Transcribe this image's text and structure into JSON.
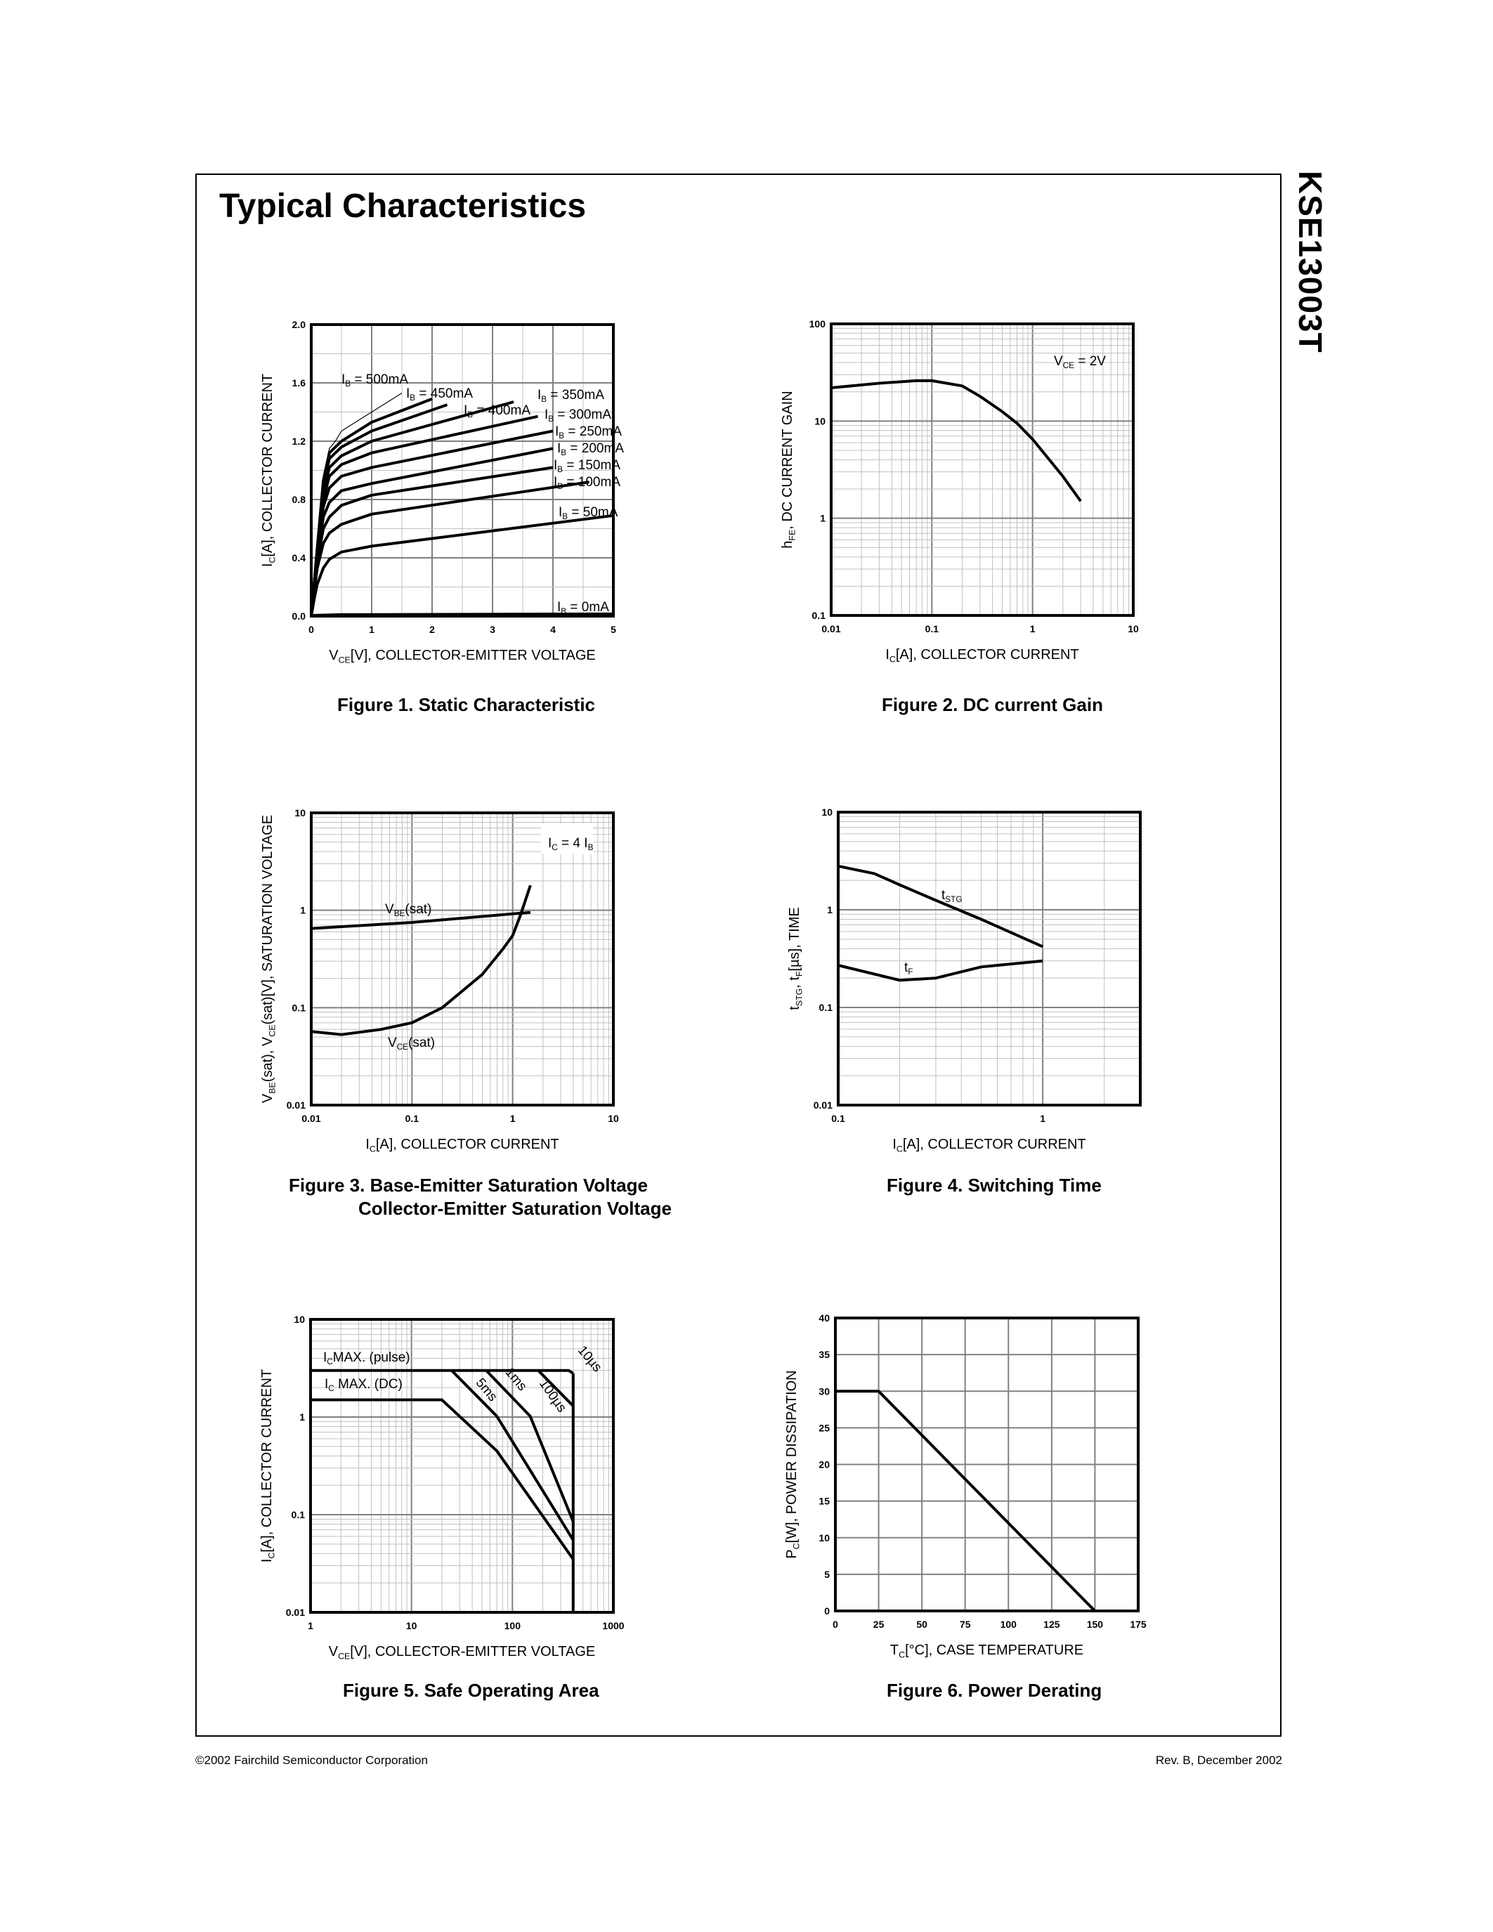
{
  "page": {
    "title": "Typical Characteristics",
    "part_number": "KSE13003T",
    "footer_left": "©2002 Fairchild Semiconductor Corporation",
    "footer_right": "Rev. B, December 2002"
  },
  "captions": {
    "fig1": "Figure 1. Static Characteristic",
    "fig2": "Figure 2. DC current Gain",
    "fig3_line1": "Figure 3. Base-Emitter Saturation Voltage",
    "fig3_line2": "Collector-Emitter Saturation Voltage",
    "fig4": "Figure 4. Switching Time",
    "fig5": "Figure 5. Safe Operating Area",
    "fig6": "Figure 6. Power Derating"
  },
  "chart_data": [
    {
      "type": "line",
      "xscale": "linear",
      "yscale": "linear",
      "xlim": [
        0,
        5
      ],
      "ylim": [
        0,
        2.0
      ],
      "grid": true,
      "xticks": [
        "0",
        "1",
        "2",
        "3",
        "4",
        "5"
      ],
      "yticks": [
        "0.0",
        "0.4",
        "0.8",
        "1.2",
        "1.6",
        "2.0"
      ],
      "xlabel": [
        "V",
        "CE",
        "[V], COLLECTOR-EMITTER VOLTAGE"
      ],
      "ylabel": [
        "I",
        "C",
        "[A], COLLECTOR CURRENT"
      ],
      "annotations": [],
      "series": [
        {
          "name": [
            "I",
            "B",
            " = 500mA"
          ],
          "points": [
            [
              0,
              0
            ],
            [
              0.1,
              0.48
            ],
            [
              0.2,
              0.96
            ],
            [
              0.3,
              1.15
            ],
            [
              0.4,
              1.2
            ],
            [
              0.5,
              1.27
            ],
            [
              1,
              1.4
            ],
            [
              1.5,
              1.53
            ]
          ]
        },
        {
          "name": [
            "I",
            "B",
            " = 450mA"
          ],
          "points": [
            [
              0,
              0
            ],
            [
              0.1,
              0.47
            ],
            [
              0.2,
              0.93
            ],
            [
              0.3,
              1.12
            ],
            [
              0.5,
              1.2
            ],
            [
              1,
              1.33
            ],
            [
              2,
              1.49
            ]
          ]
        },
        {
          "name": [
            "I",
            "B",
            " = 400mA"
          ],
          "points": [
            [
              0,
              0
            ],
            [
              0.1,
              0.46
            ],
            [
              0.2,
              0.9
            ],
            [
              0.3,
              1.08
            ],
            [
              0.5,
              1.16
            ],
            [
              1,
              1.27
            ],
            [
              2.25,
              1.45
            ]
          ]
        },
        {
          "name": [
            "I",
            "B",
            " = 350mA"
          ],
          "points": [
            [
              0,
              0
            ],
            [
              0.1,
              0.45
            ],
            [
              0.2,
              0.85
            ],
            [
              0.3,
              1.02
            ],
            [
              0.5,
              1.1
            ],
            [
              1,
              1.2
            ],
            [
              3.35,
              1.47
            ]
          ]
        },
        {
          "name": [
            "I",
            "B",
            " = 300mA"
          ],
          "points": [
            [
              0,
              0
            ],
            [
              0.1,
              0.44
            ],
            [
              0.2,
              0.8
            ],
            [
              0.3,
              0.96
            ],
            [
              0.5,
              1.04
            ],
            [
              1,
              1.12
            ],
            [
              3.75,
              1.37
            ]
          ]
        },
        {
          "name": [
            "I",
            "B",
            " = 250mA"
          ],
          "points": [
            [
              0,
              0
            ],
            [
              0.1,
              0.42
            ],
            [
              0.2,
              0.75
            ],
            [
              0.3,
              0.88
            ],
            [
              0.5,
              0.96
            ],
            [
              1,
              1.02
            ],
            [
              4,
              1.27
            ]
          ]
        },
        {
          "name": [
            "I",
            "B",
            " = 200mA"
          ],
          "points": [
            [
              0,
              0
            ],
            [
              0.1,
              0.4
            ],
            [
              0.2,
              0.68
            ],
            [
              0.3,
              0.78
            ],
            [
              0.5,
              0.86
            ],
            [
              1,
              0.91
            ],
            [
              4,
              1.15
            ]
          ]
        },
        {
          "name": [
            "I",
            "B",
            " = 150mA"
          ],
          "points": [
            [
              0,
              0
            ],
            [
              0.1,
              0.38
            ],
            [
              0.2,
              0.6
            ],
            [
              0.3,
              0.68
            ],
            [
              0.5,
              0.76
            ],
            [
              1,
              0.83
            ],
            [
              4,
              1.02
            ]
          ]
        },
        {
          "name": [
            "I",
            "B",
            " = 100mA"
          ],
          "points": [
            [
              0,
              0
            ],
            [
              0.05,
              0.18
            ],
            [
              0.1,
              0.33
            ],
            [
              0.2,
              0.5
            ],
            [
              0.3,
              0.57
            ],
            [
              0.5,
              0.63
            ],
            [
              1,
              0.7
            ],
            [
              4.6,
              0.92
            ]
          ]
        },
        {
          "name": [
            "I",
            "B",
            " = 50mA"
          ],
          "points": [
            [
              0,
              0
            ],
            [
              0.05,
              0.12
            ],
            [
              0.1,
              0.22
            ],
            [
              0.2,
              0.33
            ],
            [
              0.3,
              0.39
            ],
            [
              0.5,
              0.44
            ],
            [
              1,
              0.48
            ],
            [
              5,
              0.69
            ]
          ]
        },
        {
          "name": [
            "I",
            "B",
            " = 0mA"
          ],
          "points": [
            [
              0,
              0.005
            ],
            [
              0.5,
              0.01
            ],
            [
              5,
              0.015
            ]
          ]
        }
      ]
    },
    {
      "type": "line",
      "xscale": "log",
      "yscale": "log",
      "xlim": [
        0.01,
        10
      ],
      "ylim": [
        0.1,
        100
      ],
      "grid": true,
      "xticks": [
        "0.01",
        "0.1",
        "1",
        "10"
      ],
      "yticks": [
        "0.1",
        "1",
        "10",
        "100"
      ],
      "xlabel": [
        "I",
        "C",
        "[A], COLLECTOR CURRENT"
      ],
      "ylabel": [
        "h",
        "FE",
        ", DC CURRENT GAIN"
      ],
      "annotations": [
        [
          "V",
          "CE",
          " = 2V"
        ]
      ],
      "series": [
        {
          "points": [
            [
              0.01,
              22
            ],
            [
              0.03,
              24.5
            ],
            [
              0.07,
              26
            ],
            [
              0.1,
              26
            ],
            [
              0.2,
              23
            ],
            [
              0.3,
              18
            ],
            [
              0.5,
              12.5
            ],
            [
              0.7,
              9.5
            ],
            [
              1,
              6.5
            ],
            [
              2,
              2.7
            ],
            [
              3,
              1.5
            ]
          ]
        }
      ]
    },
    {
      "type": "line",
      "xscale": "log",
      "yscale": "log",
      "xlim": [
        0.01,
        10
      ],
      "ylim": [
        0.01,
        10
      ],
      "grid": true,
      "xticks": [
        "0.01",
        "0.1",
        "1",
        "10"
      ],
      "yticks": [
        "0.01",
        "0.1",
        "1",
        "10"
      ],
      "xlabel": [
        "I",
        "C",
        "[A], COLLECTOR CURRENT"
      ],
      "ylabel": [
        "V",
        "BE",
        "(sat), V",
        "CE",
        "(sat)[V], SATURATION VOLTAGE"
      ],
      "annotations": [
        [
          "I",
          "C",
          " = 4 I",
          "B"
        ]
      ],
      "series": [
        {
          "name": [
            "V",
            "BE",
            "(sat)"
          ],
          "points": [
            [
              0.01,
              0.65
            ],
            [
              0.1,
              0.75
            ],
            [
              1,
              0.92
            ],
            [
              1.5,
              0.95
            ]
          ]
        },
        {
          "name": [
            "V",
            "CE",
            "(sat)"
          ],
          "points": [
            [
              0.01,
              0.057
            ],
            [
              0.02,
              0.053
            ],
            [
              0.05,
              0.06
            ],
            [
              0.1,
              0.07
            ],
            [
              0.2,
              0.1
            ],
            [
              0.5,
              0.22
            ],
            [
              0.8,
              0.4
            ],
            [
              1,
              0.55
            ],
            [
              1.2,
              0.9
            ],
            [
              1.5,
              1.8
            ]
          ]
        }
      ]
    },
    {
      "type": "line",
      "xscale": "log",
      "yscale": "log",
      "xlim": [
        0.1,
        3
      ],
      "ylim": [
        0.01,
        10
      ],
      "grid": true,
      "xticks": [
        "0.1",
        "1"
      ],
      "yticks": [
        "0.01",
        "0.1",
        "1",
        "10"
      ],
      "xlabel": [
        "I",
        "C",
        "[A], COLLECTOR CURRENT"
      ],
      "ylabel": [
        "t",
        "STG",
        ", t",
        "F",
        "[µs], TIME"
      ],
      "annotations": [],
      "series": [
        {
          "name": [
            "t",
            "STG"
          ],
          "points": [
            [
              0.1,
              2.8
            ],
            [
              0.15,
              2.35
            ],
            [
              0.2,
              1.8
            ],
            [
              0.3,
              1.25
            ],
            [
              0.5,
              0.8
            ],
            [
              1,
              0.42
            ]
          ]
        },
        {
          "name": [
            "t",
            "F"
          ],
          "points": [
            [
              0.1,
              0.27
            ],
            [
              0.2,
              0.19
            ],
            [
              0.3,
              0.2
            ],
            [
              0.5,
              0.26
            ],
            [
              1,
              0.3
            ]
          ]
        }
      ]
    },
    {
      "type": "line",
      "xscale": "log",
      "yscale": "log",
      "xlim": [
        1,
        1000
      ],
      "ylim": [
        0.01,
        10
      ],
      "grid": true,
      "xticks": [
        "1",
        "10",
        "100",
        "1000"
      ],
      "yticks": [
        "0.01",
        "0.1",
        "1",
        "10"
      ],
      "xlabel": [
        "V",
        "CE",
        "[V], COLLECTOR-EMITTER VOLTAGE"
      ],
      "ylabel": [
        "I",
        "C",
        "[A], COLLECTOR CURRENT"
      ],
      "annotations": [],
      "series": [
        {
          "name": [
            "I",
            "C",
            "MAX. (pulse)"
          ],
          "points": [
            [
              1,
              3
            ],
            [
              360,
              3
            ],
            [
              400,
              2.8
            ]
          ]
        },
        {
          "name": [
            "I",
            "C",
            " MAX. (DC)"
          ],
          "points": [
            [
              1,
              1.5
            ],
            [
              20,
              1.5
            ],
            [
              70,
              0.45
            ],
            [
              400,
              0.035
            ]
          ]
        },
        {
          "name": [
            "5ms"
          ],
          "points": [
            [
              25,
              3
            ],
            [
              70,
              1.02
            ],
            [
              400,
              0.055
            ]
          ]
        },
        {
          "name": [
            "1ms"
          ],
          "points": [
            [
              55,
              3
            ],
            [
              150,
              1.02
            ],
            [
              400,
              0.085
            ]
          ]
        },
        {
          "name": [
            "100µs"
          ],
          "points": [
            [
              180,
              3
            ],
            [
              400,
              1.3
            ]
          ]
        },
        {
          "name": [
            "10µs"
          ],
          "points": [
            [
              400,
              2.8
            ],
            [
              400,
              0.01
            ]
          ]
        }
      ]
    },
    {
      "type": "line",
      "xscale": "linear",
      "yscale": "linear",
      "xlim": [
        0,
        175
      ],
      "ylim": [
        0,
        40
      ],
      "grid": true,
      "xticks": [
        "0",
        "25",
        "50",
        "75",
        "100",
        "125",
        "150",
        "175"
      ],
      "yticks": [
        "0",
        "5",
        "10",
        "15",
        "20",
        "25",
        "30",
        "35",
        "40"
      ],
      "xlabel": [
        "T",
        "C",
        "[°C], CASE TEMPERATURE"
      ],
      "ylabel": [
        "P",
        "C",
        "[W], POWER DISSIPATION"
      ],
      "annotations": [],
      "series": [
        {
          "points": [
            [
              0,
              30
            ],
            [
              25,
              30
            ],
            [
              150,
              0
            ]
          ]
        }
      ]
    }
  ]
}
